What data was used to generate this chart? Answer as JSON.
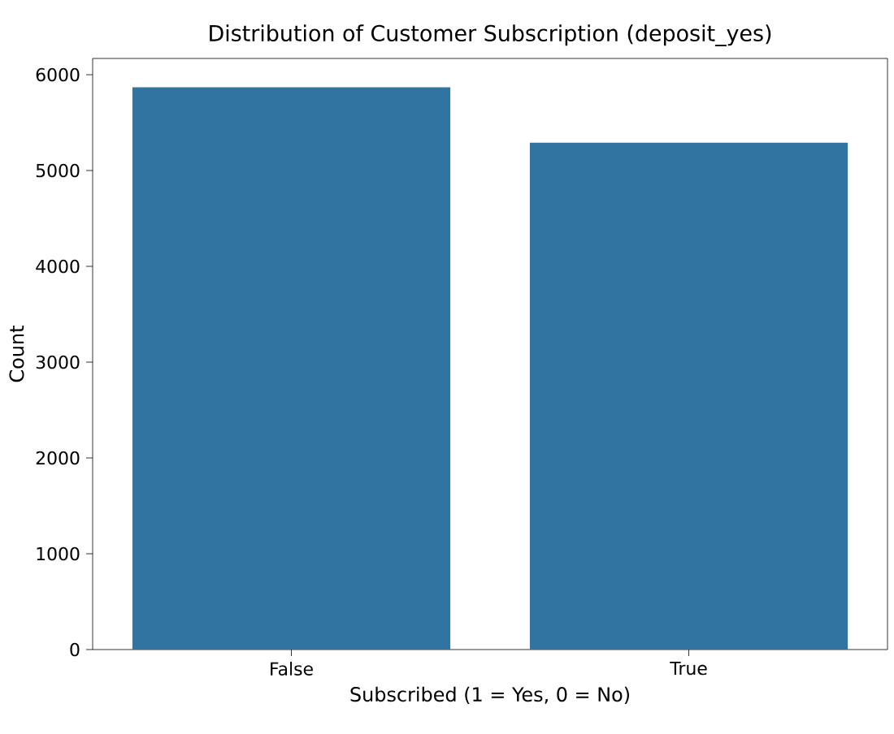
{
  "chart_data": {
    "type": "bar",
    "title": "Distribution of Customer Subscription (deposit_yes)",
    "xlabel": "Subscribed (1 = Yes, 0 = No)",
    "ylabel": "Count",
    "categories": [
      "False",
      "True"
    ],
    "values": [
      5870,
      5290
    ],
    "color": "#3274a1",
    "ylim": [
      0,
      6170
    ],
    "yticks": [
      0,
      1000,
      2000,
      3000,
      4000,
      5000,
      6000
    ]
  }
}
